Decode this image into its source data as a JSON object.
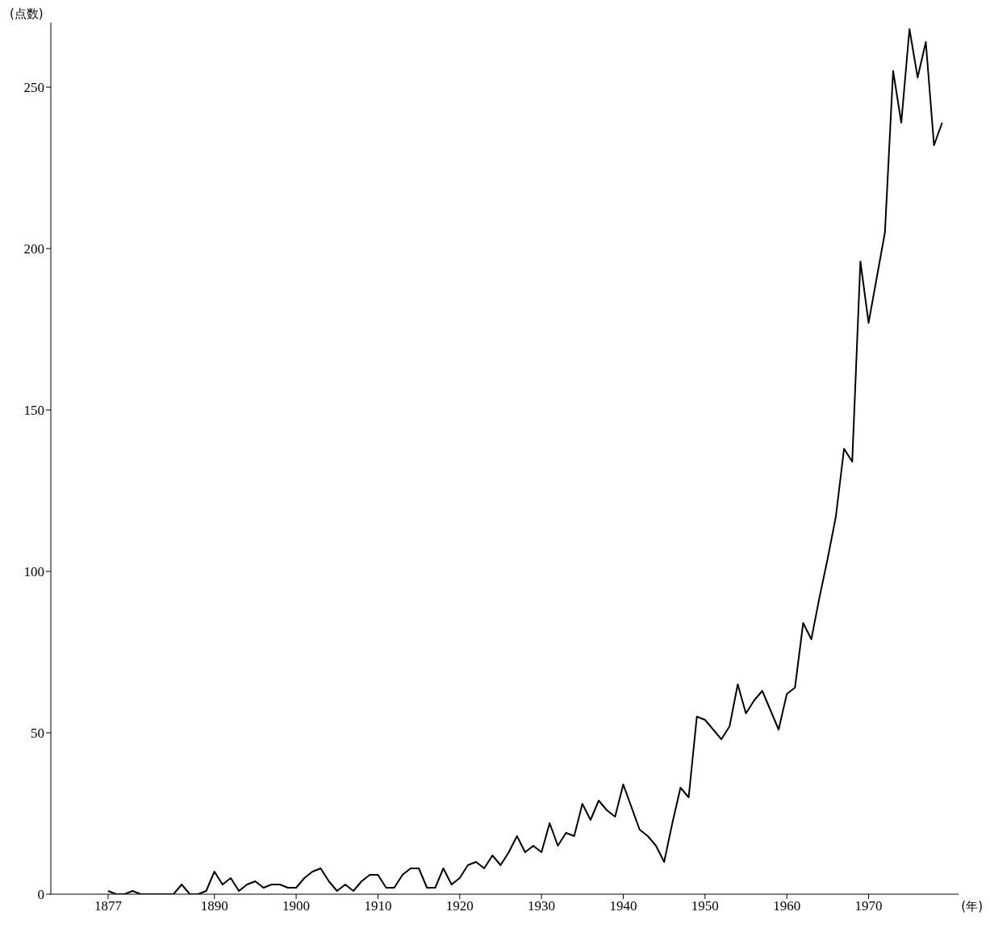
{
  "chart_data": {
    "type": "line",
    "xlabel": "(年)",
    "ylabel": "(点数)",
    "x": [
      1877,
      1878,
      1879,
      1880,
      1881,
      1882,
      1883,
      1884,
      1885,
      1886,
      1887,
      1888,
      1889,
      1890,
      1891,
      1892,
      1893,
      1894,
      1895,
      1896,
      1897,
      1898,
      1899,
      1900,
      1901,
      1902,
      1903,
      1904,
      1905,
      1906,
      1907,
      1908,
      1909,
      1910,
      1911,
      1912,
      1913,
      1914,
      1915,
      1916,
      1917,
      1918,
      1919,
      1920,
      1921,
      1922,
      1923,
      1924,
      1925,
      1926,
      1927,
      1928,
      1929,
      1930,
      1931,
      1932,
      1933,
      1934,
      1935,
      1936,
      1937,
      1938,
      1939,
      1940,
      1941,
      1942,
      1943,
      1944,
      1945,
      1946,
      1947,
      1948,
      1949,
      1950,
      1951,
      1952,
      1953,
      1954,
      1955,
      1956,
      1957,
      1958,
      1959,
      1960,
      1961,
      1962,
      1963,
      1964,
      1965,
      1966,
      1967,
      1968,
      1969,
      1970,
      1971,
      1972,
      1973,
      1974,
      1975,
      1976,
      1977,
      1978,
      1979
    ],
    "series": [
      {
        "color": "#000000",
        "values": [
          1,
          0,
          0,
          1,
          0,
          0,
          0,
          0,
          0,
          3,
          0,
          0,
          1,
          7,
          3,
          5,
          1,
          3,
          4,
          2,
          3,
          3,
          2,
          2,
          5,
          7,
          8,
          4,
          1,
          3,
          1,
          4,
          6,
          6,
          2,
          2,
          6,
          8,
          8,
          2,
          2,
          8,
          3,
          5,
          9,
          10,
          8,
          12,
          9,
          13,
          18,
          13,
          15,
          13,
          22,
          15,
          19,
          18,
          28,
          23,
          29,
          26,
          24,
          34,
          27,
          20,
          18,
          15,
          10,
          22,
          33,
          30,
          55,
          54,
          51,
          48,
          52,
          65,
          56,
          60,
          63,
          57,
          51,
          62,
          64,
          84,
          79,
          92,
          104,
          117,
          138,
          134,
          196,
          177,
          191,
          205,
          255,
          239,
          268,
          253,
          264,
          232,
          239
        ]
      }
    ],
    "xlim": [
      1870,
      1981
    ],
    "xticks": [
      1877,
      1890,
      1900,
      1910,
      1920,
      1930,
      1940,
      1950,
      1960,
      1970
    ],
    "ylim": [
      0,
      270
    ],
    "yticks": [
      0,
      50,
      100,
      150,
      200,
      250
    ],
    "grid": false,
    "legend": false,
    "marker": "none",
    "line_style": "solid"
  }
}
